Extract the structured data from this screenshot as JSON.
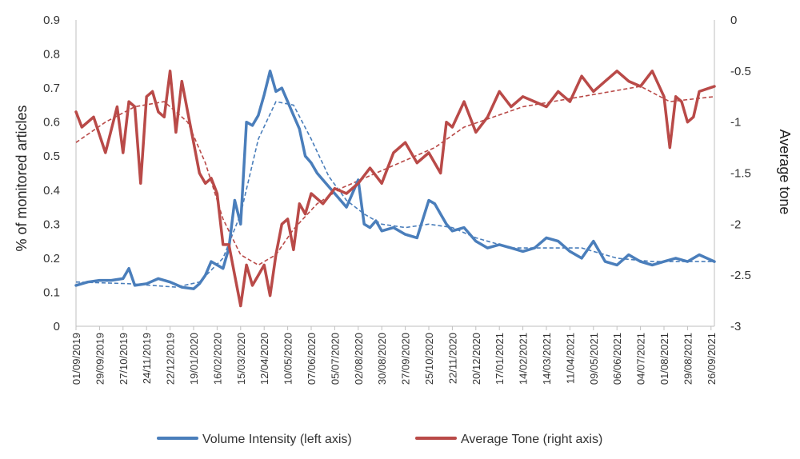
{
  "chart_data": {
    "type": "line",
    "title": "",
    "xlabel": "",
    "ylabel_left": "% of monitored articles",
    "ylabel_right": "Average tone",
    "ylim_left": [
      0,
      0.9
    ],
    "ylim_right": [
      -3,
      0
    ],
    "yticks_left": [
      "0",
      "0.1",
      "0.2",
      "0.3",
      "0.4",
      "0.5",
      "0.6",
      "0.7",
      "0.8",
      "0.9"
    ],
    "yticks_right": [
      "-3",
      "-2.5",
      "-2",
      "-1.5",
      "-1",
      "-0.5",
      "0"
    ],
    "x_start": "2019-09-01",
    "x_end": "2021-09-30",
    "x_tick_labels": [
      "01/09/2019",
      "29/09/2019",
      "27/10/2019",
      "24/11/2019",
      "22/12/2019",
      "19/01/2020",
      "16/02/2020",
      "15/03/2020",
      "12/04/2020",
      "10/05/2020",
      "07/06/2020",
      "05/07/2020",
      "02/08/2020",
      "30/08/2020",
      "27/09/2020",
      "25/10/2020",
      "22/11/2020",
      "20/12/2020",
      "17/01/2021",
      "14/02/2021",
      "14/03/2021",
      "11/04/2021",
      "09/05/2021",
      "06/06/2021",
      "04/07/2021",
      "01/08/2021",
      "29/08/2021",
      "26/09/2021"
    ],
    "grid": false,
    "legend_position": "bottom",
    "series": [
      {
        "name": "Volume Intensity (left axis)",
        "axis": "left",
        "color": "#4a7ebb",
        "x": [
          "2019-09-01",
          "2019-09-15",
          "2019-09-29",
          "2019-10-13",
          "2019-10-27",
          "2019-11-03",
          "2019-11-10",
          "2019-11-24",
          "2019-12-08",
          "2019-12-22",
          "2020-01-05",
          "2020-01-19",
          "2020-01-26",
          "2020-02-02",
          "2020-02-09",
          "2020-02-16",
          "2020-02-23",
          "2020-03-01",
          "2020-03-08",
          "2020-03-15",
          "2020-03-22",
          "2020-03-29",
          "2020-04-05",
          "2020-04-12",
          "2020-04-19",
          "2020-04-26",
          "2020-05-03",
          "2020-05-10",
          "2020-05-17",
          "2020-05-24",
          "2020-05-31",
          "2020-06-07",
          "2020-06-14",
          "2020-06-21",
          "2020-07-05",
          "2020-07-19",
          "2020-08-02",
          "2020-08-09",
          "2020-08-16",
          "2020-08-23",
          "2020-08-30",
          "2020-09-13",
          "2020-09-27",
          "2020-10-11",
          "2020-10-25",
          "2020-11-01",
          "2020-11-08",
          "2020-11-15",
          "2020-11-22",
          "2020-12-06",
          "2020-12-20",
          "2021-01-03",
          "2021-01-17",
          "2021-01-31",
          "2021-02-14",
          "2021-02-28",
          "2021-03-14",
          "2021-03-28",
          "2021-04-11",
          "2021-04-25",
          "2021-05-09",
          "2021-05-23",
          "2021-06-06",
          "2021-06-20",
          "2021-07-04",
          "2021-07-18",
          "2021-08-01",
          "2021-08-15",
          "2021-08-29",
          "2021-09-12",
          "2021-09-30"
        ],
        "values": [
          0.12,
          0.13,
          0.135,
          0.135,
          0.14,
          0.17,
          0.12,
          0.125,
          0.14,
          0.13,
          0.115,
          0.11,
          0.125,
          0.15,
          0.19,
          0.18,
          0.17,
          0.23,
          0.37,
          0.3,
          0.6,
          0.59,
          0.62,
          0.68,
          0.75,
          0.69,
          0.7,
          0.66,
          0.62,
          0.58,
          0.5,
          0.48,
          0.45,
          0.43,
          0.39,
          0.35,
          0.43,
          0.3,
          0.29,
          0.31,
          0.28,
          0.29,
          0.27,
          0.26,
          0.37,
          0.36,
          0.33,
          0.3,
          0.28,
          0.29,
          0.25,
          0.23,
          0.24,
          0.23,
          0.22,
          0.23,
          0.26,
          0.25,
          0.22,
          0.2,
          0.25,
          0.19,
          0.18,
          0.21,
          0.19,
          0.18,
          0.19,
          0.2,
          0.19,
          0.21,
          0.19
        ]
      },
      {
        "name": "Average Tone (right axis)",
        "axis": "right",
        "color": "#b94a48",
        "x": [
          "2019-09-01",
          "2019-09-08",
          "2019-09-22",
          "2019-10-06",
          "2019-10-20",
          "2019-10-27",
          "2019-11-03",
          "2019-11-10",
          "2019-11-17",
          "2019-11-24",
          "2019-12-01",
          "2019-12-08",
          "2019-12-15",
          "2019-12-22",
          "2019-12-29",
          "2020-01-05",
          "2020-01-12",
          "2020-01-19",
          "2020-01-26",
          "2020-02-02",
          "2020-02-09",
          "2020-02-16",
          "2020-02-23",
          "2020-03-01",
          "2020-03-08",
          "2020-03-15",
          "2020-03-22",
          "2020-03-29",
          "2020-04-05",
          "2020-04-12",
          "2020-04-19",
          "2020-04-26",
          "2020-05-03",
          "2020-05-10",
          "2020-05-17",
          "2020-05-24",
          "2020-05-31",
          "2020-06-07",
          "2020-06-21",
          "2020-07-05",
          "2020-07-19",
          "2020-08-02",
          "2020-08-16",
          "2020-08-30",
          "2020-09-13",
          "2020-09-27",
          "2020-10-11",
          "2020-10-25",
          "2020-11-08",
          "2020-11-15",
          "2020-11-22",
          "2020-12-06",
          "2020-12-20",
          "2021-01-03",
          "2021-01-17",
          "2021-01-31",
          "2021-02-14",
          "2021-02-28",
          "2021-03-14",
          "2021-03-28",
          "2021-04-11",
          "2021-04-25",
          "2021-05-09",
          "2021-05-23",
          "2021-06-06",
          "2021-06-20",
          "2021-07-04",
          "2021-07-18",
          "2021-08-01",
          "2021-08-08",
          "2021-08-15",
          "2021-08-22",
          "2021-08-29",
          "2021-09-05",
          "2021-09-12",
          "2021-09-30"
        ],
        "values": [
          -0.9,
          -1.05,
          -0.95,
          -1.3,
          -0.85,
          -1.3,
          -0.8,
          -0.85,
          -1.6,
          -0.75,
          -0.7,
          -0.9,
          -0.95,
          -0.5,
          -1.1,
          -0.6,
          -0.9,
          -1.2,
          -1.5,
          -1.6,
          -1.55,
          -1.7,
          -2.2,
          -2.2,
          -2.5,
          -2.8,
          -2.4,
          -2.6,
          -2.5,
          -2.4,
          -2.7,
          -2.3,
          -2.0,
          -1.95,
          -2.25,
          -1.8,
          -1.9,
          -1.7,
          -1.8,
          -1.65,
          -1.7,
          -1.6,
          -1.45,
          -1.6,
          -1.3,
          -1.2,
          -1.4,
          -1.3,
          -1.5,
          -1.0,
          -1.05,
          -0.8,
          -1.1,
          -0.95,
          -0.7,
          -0.85,
          -0.75,
          -0.8,
          -0.85,
          -0.7,
          -0.8,
          -0.55,
          -0.7,
          -0.6,
          -0.5,
          -0.6,
          -0.65,
          -0.5,
          -0.75,
          -1.25,
          -0.75,
          -0.8,
          -1.0,
          -0.95,
          -0.7,
          -0.65
        ]
      }
    ],
    "trendlines": [
      {
        "series": "Volume Intensity (left axis)",
        "style": "dashed",
        "color": "#4a7ebb",
        "x": [
          "2019-09-01",
          "2019-11-03",
          "2019-12-29",
          "2020-01-26",
          "2020-02-23",
          "2020-03-15",
          "2020-04-05",
          "2020-04-26",
          "2020-05-17",
          "2020-06-07",
          "2020-06-28",
          "2020-07-19",
          "2020-08-09",
          "2020-08-30",
          "2020-09-27",
          "2020-10-25",
          "2020-11-22",
          "2020-12-20",
          "2021-01-31",
          "2021-03-14",
          "2021-04-25",
          "2021-06-06",
          "2021-07-18",
          "2021-08-29",
          "2021-09-30"
        ],
        "values": [
          0.13,
          0.125,
          0.115,
          0.13,
          0.2,
          0.33,
          0.55,
          0.66,
          0.65,
          0.55,
          0.44,
          0.37,
          0.33,
          0.3,
          0.29,
          0.3,
          0.29,
          0.26,
          0.23,
          0.23,
          0.23,
          0.2,
          0.19,
          0.19,
          0.19
        ]
      },
      {
        "series": "Average Tone (right axis)",
        "style": "dashed",
        "color": "#b94a48",
        "x": [
          "2019-09-01",
          "2019-10-06",
          "2019-11-10",
          "2019-12-15",
          "2020-01-12",
          "2020-02-02",
          "2020-02-23",
          "2020-03-15",
          "2020-04-05",
          "2020-04-26",
          "2020-05-17",
          "2020-06-14",
          "2020-07-12",
          "2020-08-09",
          "2020-09-06",
          "2020-10-04",
          "2020-11-01",
          "2020-12-06",
          "2021-01-10",
          "2021-02-14",
          "2021-03-21",
          "2021-04-25",
          "2021-05-30",
          "2021-07-04",
          "2021-08-08",
          "2021-09-30"
        ],
        "values": [
          -1.2,
          -1.0,
          -0.85,
          -0.8,
          -1.0,
          -1.4,
          -1.95,
          -2.3,
          -2.4,
          -2.3,
          -2.05,
          -1.8,
          -1.65,
          -1.55,
          -1.45,
          -1.35,
          -1.25,
          -1.05,
          -0.95,
          -0.85,
          -0.8,
          -0.75,
          -0.7,
          -0.65,
          -0.8,
          -0.75
        ]
      }
    ]
  }
}
